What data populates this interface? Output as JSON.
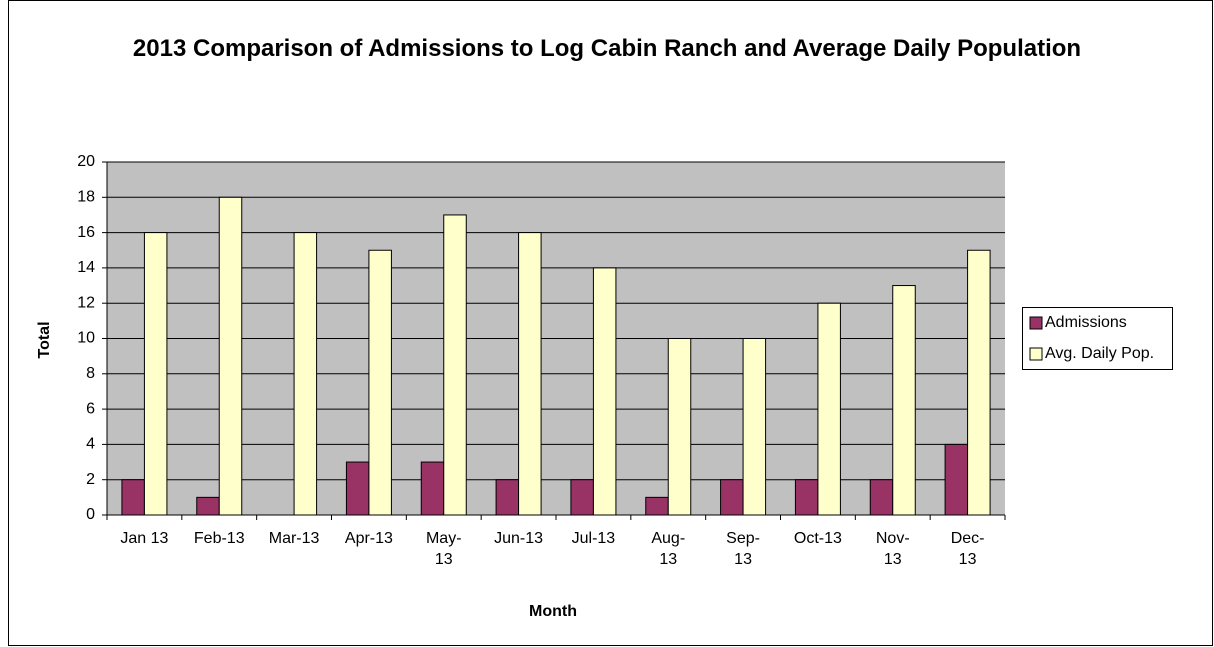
{
  "chart_data": {
    "type": "bar",
    "title": "2013 Comparison of Admissions to Log Cabin Ranch and Average Daily Population",
    "x_label": "Month",
    "y_label": "Total",
    "categories": [
      "Jan 13",
      "Feb-13",
      "Mar-13",
      "Apr-13",
      "May-\n13",
      "Jun-13",
      "Jul-13",
      "Aug-\n13",
      "Sep-\n13",
      "Oct-13",
      "Nov-\n13",
      "Dec-\n13"
    ],
    "series": [
      {
        "name": "Admissions",
        "color": "#993366",
        "values": [
          2,
          1,
          0,
          3,
          3,
          2,
          2,
          1,
          2,
          2,
          2,
          4
        ]
      },
      {
        "name": "Avg. Daily Pop.",
        "color": "#ffffcc",
        "values": [
          16,
          18,
          16,
          15,
          17,
          16,
          14,
          10,
          10,
          12,
          13,
          15
        ]
      }
    ],
    "ylim": [
      0,
      20
    ],
    "yticks": [
      0,
      2,
      4,
      6,
      8,
      10,
      12,
      14,
      16,
      18,
      20
    ],
    "grid": true,
    "legend": "right"
  }
}
